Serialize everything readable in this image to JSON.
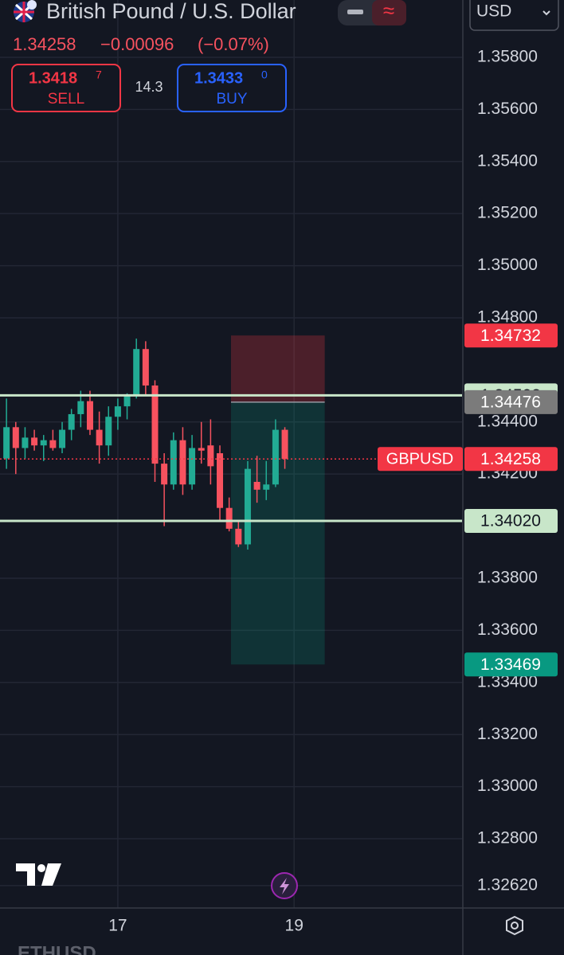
{
  "header": {
    "title": "British Pound / U.S. Dollar",
    "last": "1.34258",
    "change": "−0.00096",
    "change_pct": "(−0.07%)",
    "sell_price": "1.3418",
    "sell_pip": "7",
    "sell_label": "SELL",
    "spread": "14.3",
    "buy_price": "1.3433",
    "buy_pip": "0",
    "buy_label": "BUY",
    "currency": "USD"
  },
  "footer": {
    "ticker": "ETHUSD"
  },
  "chart_data": {
    "type": "candlestick",
    "open": [
      1.3426,
      1.3438,
      1.343,
      1.3434,
      1.3431,
      1.3433,
      1.343,
      1.3437,
      1.3443,
      1.3448,
      1.3437,
      1.3431,
      1.3442,
      1.3446,
      1.345,
      1.3468,
      1.3454,
      1.3424,
      1.3416,
      1.3433,
      1.3416,
      1.343,
      1.3431,
      1.3428,
      1.3407,
      1.3399,
      1.3393,
      1.3417,
      1.3414,
      1.3416,
      1.3437
    ],
    "high": [
      1.3449,
      1.344,
      1.3438,
      1.3437,
      1.3435,
      1.3437,
      1.344,
      1.3445,
      1.3452,
      1.3452,
      1.3444,
      1.3446,
      1.3449,
      1.3451,
      1.3472,
      1.3471,
      1.3456,
      1.3428,
      1.3436,
      1.3438,
      1.3435,
      1.344,
      1.3441,
      1.3431,
      1.3411,
      1.3402,
      1.3425,
      1.3427,
      1.3425,
      1.3441,
      1.3438
    ],
    "low": [
      1.3422,
      1.342,
      1.3426,
      1.3429,
      1.3425,
      1.3429,
      1.3428,
      1.3433,
      1.3438,
      1.3435,
      1.3424,
      1.3427,
      1.3437,
      1.3441,
      1.3449,
      1.345,
      1.3417,
      1.34,
      1.3414,
      1.3412,
      1.3414,
      1.3424,
      1.3416,
      1.3402,
      1.3398,
      1.3392,
      1.3391,
      1.3409,
      1.341,
      1.3415,
      1.3422
    ],
    "close": [
      1.3438,
      1.343,
      1.3434,
      1.3431,
      1.3433,
      1.343,
      1.3437,
      1.3443,
      1.3448,
      1.3437,
      1.3431,
      1.3442,
      1.3446,
      1.345,
      1.3468,
      1.3454,
      1.3424,
      1.3416,
      1.3433,
      1.3416,
      1.343,
      1.3429,
      1.3423,
      1.3407,
      1.3399,
      1.3393,
      1.3422,
      1.3414,
      1.3416,
      1.3437,
      1.34258
    ],
    "up_color": "#22ab94",
    "down_color": "#f7525f",
    "xlim": [
      -0.7,
      49.1
    ],
    "xticks": [
      {
        "value": 12,
        "label": "17"
      },
      {
        "value": 31,
        "label": "19"
      }
    ],
    "ylim": [
      1.32534,
      1.3602
    ],
    "yticks": [
      {
        "value": 1.358,
        "label": "1.35800"
      },
      {
        "value": 1.356,
        "label": "1.35600"
      },
      {
        "value": 1.354,
        "label": "1.35400"
      },
      {
        "value": 1.352,
        "label": "1.35200"
      },
      {
        "value": 1.35,
        "label": "1.35000"
      },
      {
        "value": 1.348,
        "label": "1.34800"
      },
      {
        "value": 1.344,
        "label": "1.34400"
      },
      {
        "value": 1.342,
        "label": "1.34200"
      },
      {
        "value": 1.338,
        "label": "1.33800"
      },
      {
        "value": 1.336,
        "label": "1.33600"
      },
      {
        "value": 1.334,
        "label": "1.33400"
      },
      {
        "value": 1.332,
        "label": "1.33200"
      },
      {
        "value": 1.33,
        "label": "1.33000"
      },
      {
        "value": 1.328,
        "label": "1.32800"
      },
      {
        "value": 1.3262,
        "label": "1.32620"
      }
    ],
    "grid": true,
    "position": {
      "stop": 1.34732,
      "entry": 1.34476,
      "target": 1.33469,
      "start": 24.2,
      "end": 34.3
    },
    "levels": [
      {
        "value": 1.34732,
        "bg": "#f23645",
        "fg": "#ffffff",
        "line": "none"
      },
      {
        "value": 1.34502,
        "bg": "#c8e6c9",
        "fg": "#131722",
        "line": "solid"
      },
      {
        "value": 1.34476,
        "bg": "#7b7b7b",
        "fg": "#ffffff",
        "line": "none"
      },
      {
        "value": 1.34258,
        "bg": "#f23645",
        "fg": "#ffffff",
        "line": "dotted",
        "tag": "GBPUSD"
      },
      {
        "value": 1.3402,
        "label": "1.34020",
        "bg": "#c8e6c9",
        "fg": "#131722",
        "line": "solid"
      },
      {
        "value": 1.33469,
        "bg": "#089981",
        "fg": "#ffffff",
        "line": "none"
      }
    ]
  }
}
